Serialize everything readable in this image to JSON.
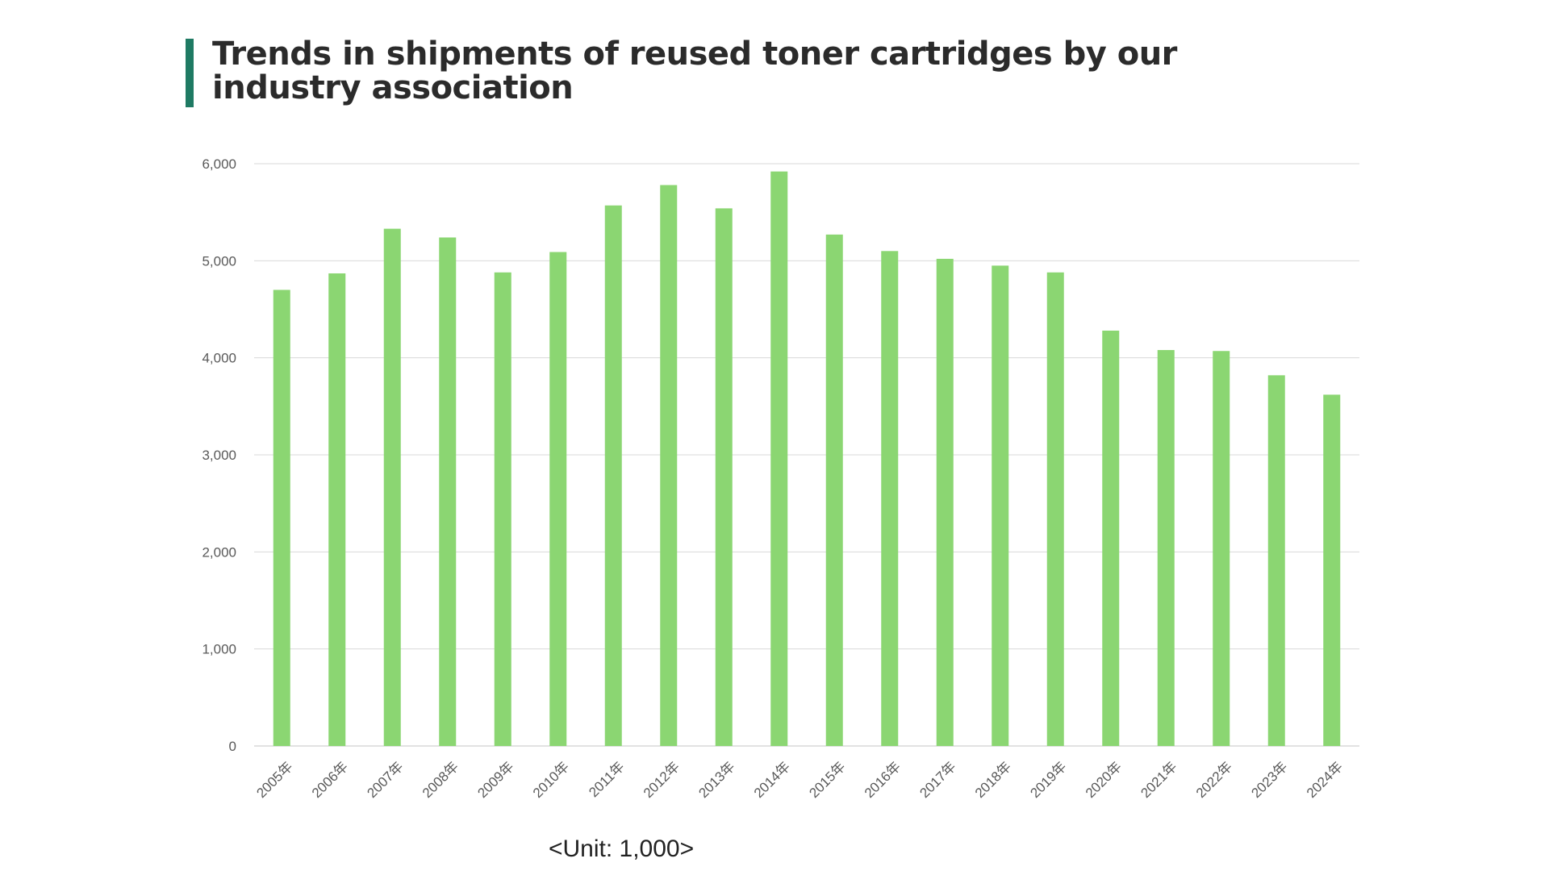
{
  "title": "Trends in shipments of reused toner cartridges by our industry association",
  "unit_note": "<Unit: 1,000>",
  "colors": {
    "bar": "#8bd672",
    "accent": "#1f7a63",
    "grid": "#d9d9d9"
  },
  "chart_data": {
    "type": "bar",
    "title": "Trends in shipments of reused toner cartridges by our industry association",
    "xlabel": "",
    "ylabel": "",
    "categories": [
      "2005年",
      "2006年",
      "2007年",
      "2008年",
      "2009年",
      "2010年",
      "2011年",
      "2012年",
      "2013年",
      "2014年",
      "2015年",
      "2016年",
      "2017年",
      "2018年",
      "2019年",
      "2020年",
      "2021年",
      "2022年",
      "2023年",
      "2024年"
    ],
    "values": [
      4700,
      4870,
      5330,
      5240,
      4880,
      5090,
      5570,
      5780,
      5540,
      5920,
      5270,
      5100,
      5020,
      4950,
      4880,
      4280,
      4080,
      4070,
      3820,
      3620
    ],
    "ylim": [
      0,
      6000
    ],
    "yticks": [
      0,
      1000,
      2000,
      3000,
      4000,
      5000,
      6000
    ],
    "ytick_labels": [
      "0",
      "1,000",
      "2,000",
      "3,000",
      "4,000",
      "5,000",
      "6,000"
    ],
    "grid": true,
    "legend": "none"
  }
}
